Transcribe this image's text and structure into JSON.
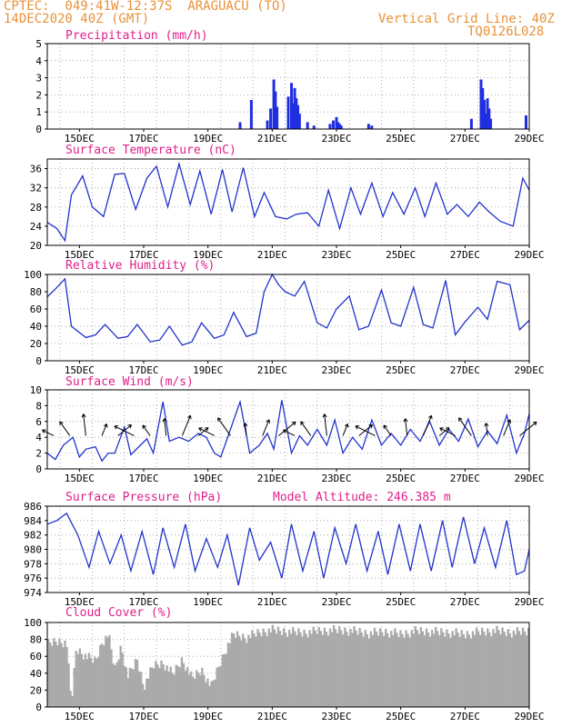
{
  "header": {
    "line1": "CPTEC:  049:41W-12:37S  ARAGUACU (TO)",
    "line2": "14DEC2020 40Z (GMT)",
    "right1": "Vertical Grid Line: 40Z",
    "right2": "TQ0126L028"
  },
  "x_ticks": [
    "15DEC",
    "17DEC",
    "19DEC",
    "21DEC",
    "23DEC",
    "25DEC",
    "27DEC",
    "29DEC"
  ],
  "colors": {
    "line": "#2233cc",
    "bar": "#1f2fe0",
    "cloud": "#aaaaaa",
    "title": "#e0208a",
    "header": "#e8923a"
  },
  "chart_data": [
    {
      "type": "bar",
      "title": "Precipitation (mm/h)",
      "ylim": [
        0,
        5
      ],
      "yticks": [
        "0",
        "1",
        "2",
        "3",
        "4",
        "5"
      ],
      "x_days": [
        20.0,
        20.35,
        20.85,
        20.95,
        21.05,
        21.1,
        21.15,
        21.5,
        21.6,
        21.65,
        21.7,
        21.75,
        21.8,
        21.85,
        22.1,
        22.3,
        22.8,
        22.9,
        23.0,
        23.05,
        23.1,
        23.15,
        24.0,
        24.1,
        27.2,
        27.5,
        27.55,
        27.6,
        27.65,
        27.7,
        27.75,
        27.8,
        28.9
      ],
      "values": [
        0.4,
        1.7,
        0.5,
        1.2,
        2.9,
        2.2,
        1.3,
        1.9,
        2.7,
        1.5,
        2.4,
        1.8,
        1.4,
        0.9,
        0.4,
        0.2,
        0.3,
        0.5,
        0.7,
        0.4,
        0.3,
        0.2,
        0.3,
        0.2,
        0.6,
        2.9,
        2.4,
        1.7,
        0.9,
        1.8,
        1.2,
        0.6,
        0.8
      ]
    },
    {
      "type": "line",
      "title": "Surface Temperature (nC)",
      "ylim": [
        20,
        38
      ],
      "yticks": [
        "20",
        "24",
        "28",
        "32",
        "36"
      ],
      "x_days": [
        14.0,
        14.3,
        14.55,
        14.75,
        15.1,
        15.4,
        15.75,
        16.1,
        16.4,
        16.75,
        17.1,
        17.4,
        17.75,
        18.1,
        18.45,
        18.75,
        19.1,
        19.45,
        19.75,
        20.1,
        20.45,
        20.75,
        21.1,
        21.45,
        21.75,
        22.1,
        22.45,
        22.75,
        23.1,
        23.45,
        23.75,
        24.1,
        24.45,
        24.75,
        25.1,
        25.45,
        25.75,
        26.1,
        26.45,
        26.75,
        27.1,
        27.45,
        27.75,
        28.1,
        28.5,
        28.8,
        29.0
      ],
      "values": [
        24.8,
        23.5,
        21.0,
        30.5,
        34.5,
        28.0,
        26.0,
        34.8,
        35.0,
        27.5,
        34.0,
        36.5,
        28.0,
        37.0,
        28.5,
        35.5,
        26.5,
        35.8,
        27.0,
        36.2,
        26.0,
        31.0,
        26.0,
        25.5,
        26.5,
        26.8,
        24.0,
        31.5,
        23.5,
        32.0,
        26.5,
        33.0,
        26.0,
        31.0,
        26.5,
        32.0,
        26.0,
        33.0,
        26.5,
        28.5,
        26.0,
        29.0,
        27.0,
        25.0,
        24.0,
        34.0,
        31.5
      ]
    },
    {
      "type": "line",
      "title": "Relative Humidity (%)",
      "ylim": [
        0,
        100
      ],
      "yticks": [
        "0",
        "20",
        "40",
        "60",
        "80",
        "100"
      ],
      "x_days": [
        14.0,
        14.3,
        14.55,
        14.75,
        15.2,
        15.5,
        15.8,
        16.2,
        16.5,
        16.8,
        17.2,
        17.5,
        17.8,
        18.2,
        18.5,
        18.8,
        19.2,
        19.5,
        19.8,
        20.2,
        20.5,
        20.75,
        21.0,
        21.2,
        21.4,
        21.7,
        22.0,
        22.4,
        22.7,
        23.0,
        23.4,
        23.7,
        24.0,
        24.4,
        24.7,
        25.0,
        25.4,
        25.7,
        26.0,
        26.4,
        26.7,
        27.0,
        27.4,
        27.7,
        28.0,
        28.4,
        28.7,
        29.0
      ],
      "values": [
        74,
        85,
        95,
        40,
        27,
        30,
        42,
        26,
        28,
        42,
        22,
        24,
        40,
        18,
        22,
        44,
        26,
        30,
        56,
        28,
        32,
        80,
        100,
        88,
        80,
        75,
        92,
        44,
        38,
        60,
        75,
        36,
        40,
        82,
        44,
        40,
        85,
        42,
        38,
        93,
        30,
        45,
        62,
        48,
        92,
        88,
        36,
        47
      ]
    },
    {
      "type": "line",
      "title": "Surface Wind (m/s)",
      "ylim": [
        0,
        10
      ],
      "yticks": [
        "0",
        "2",
        "4",
        "6",
        "8",
        "10"
      ],
      "x_days": [
        14.0,
        14.25,
        14.5,
        14.8,
        15.0,
        15.2,
        15.5,
        15.7,
        15.9,
        16.1,
        16.4,
        16.6,
        16.9,
        17.1,
        17.3,
        17.6,
        17.8,
        18.1,
        18.4,
        18.7,
        18.95,
        19.2,
        19.4,
        19.7,
        20.0,
        20.3,
        20.6,
        20.85,
        21.05,
        21.3,
        21.6,
        21.85,
        22.1,
        22.4,
        22.7,
        22.95,
        23.2,
        23.5,
        23.8,
        24.1,
        24.4,
        24.7,
        25.0,
        25.3,
        25.6,
        25.9,
        26.2,
        26.5,
        26.8,
        27.1,
        27.4,
        27.7,
        28.0,
        28.3,
        28.6,
        28.85,
        29.0
      ],
      "values": [
        2.0,
        1.2,
        3.0,
        4.0,
        1.5,
        2.5,
        2.8,
        1.0,
        2.0,
        2.0,
        5.3,
        1.8,
        3.0,
        3.8,
        2.0,
        8.5,
        3.5,
        4.0,
        3.5,
        4.5,
        4.0,
        2.0,
        1.5,
        5.0,
        8.5,
        2.0,
        3.0,
        4.5,
        2.5,
        8.7,
        2.0,
        4.2,
        3.0,
        5.0,
        3.0,
        6.2,
        2.0,
        4.0,
        2.5,
        6.2,
        3.0,
        4.5,
        3.0,
        5.0,
        3.5,
        6.0,
        3.0,
        5.0,
        3.5,
        6.3,
        2.8,
        4.8,
        3.2,
        6.8,
        2.0,
        4.5,
        7.0
      ]
    },
    {
      "type": "line",
      "title": "Surface Pressure (hPa)",
      "subtitle": "Model Altitude: 246.385 m",
      "ylim": [
        974,
        986
      ],
      "yticks": [
        "974",
        "976",
        "978",
        "980",
        "982",
        "984",
        "986"
      ],
      "x_days": [
        14.0,
        14.3,
        14.6,
        14.95,
        15.3,
        15.6,
        15.95,
        16.3,
        16.6,
        16.95,
        17.3,
        17.6,
        17.95,
        18.3,
        18.6,
        18.95,
        19.3,
        19.6,
        19.95,
        20.3,
        20.6,
        20.95,
        21.3,
        21.6,
        21.95,
        22.3,
        22.6,
        22.95,
        23.3,
        23.6,
        23.95,
        24.3,
        24.6,
        24.95,
        25.3,
        25.6,
        25.95,
        26.3,
        26.6,
        26.95,
        27.3,
        27.6,
        27.95,
        28.3,
        28.6,
        28.85,
        29.0
      ],
      "values": [
        983.5,
        984.0,
        985.0,
        982.0,
        977.5,
        982.5,
        978.0,
        982.0,
        977.0,
        982.5,
        976.5,
        983.0,
        977.5,
        983.5,
        977.0,
        981.5,
        977.5,
        982.0,
        975.0,
        983.0,
        978.5,
        981.0,
        976.0,
        983.5,
        977.0,
        982.5,
        976.0,
        983.0,
        978.0,
        983.5,
        977.0,
        982.5,
        976.5,
        983.5,
        977.0,
        983.5,
        977.0,
        984.0,
        977.5,
        984.5,
        978.0,
        983.0,
        977.5,
        984.0,
        976.5,
        977.0,
        980.0
      ]
    },
    {
      "type": "area",
      "title": "Cloud Cover (%)",
      "ylim": [
        0,
        100
      ],
      "yticks": [
        "0",
        "20",
        "40",
        "60",
        "80",
        "100"
      ],
      "x_days": [
        14.0,
        14.3,
        14.6,
        14.75,
        14.9,
        15.2,
        15.5,
        15.7,
        15.9,
        16.1,
        16.3,
        16.5,
        16.8,
        17.0,
        17.3,
        17.6,
        17.9,
        18.2,
        18.5,
        18.8,
        19.1,
        19.4,
        19.6,
        19.8,
        20.0,
        20.2,
        20.5,
        20.8,
        21.0,
        21.5,
        22.0,
        22.5,
        23.0,
        23.5,
        24.0,
        24.5,
        25.0,
        25.5,
        26.0,
        26.5,
        27.0,
        27.5,
        28.0,
        28.5,
        29.0
      ],
      "values": [
        80,
        84,
        82,
        10,
        75,
        66,
        60,
        82,
        92,
        50,
        78,
        42,
        62,
        30,
        55,
        58,
        45,
        62,
        40,
        50,
        30,
        60,
        78,
        92,
        90,
        88,
        93,
        96,
        97,
        95,
        94,
        96,
        97,
        96,
        93,
        95,
        92,
        96,
        95,
        94,
        92,
        95,
        96,
        94,
        96
      ]
    }
  ]
}
